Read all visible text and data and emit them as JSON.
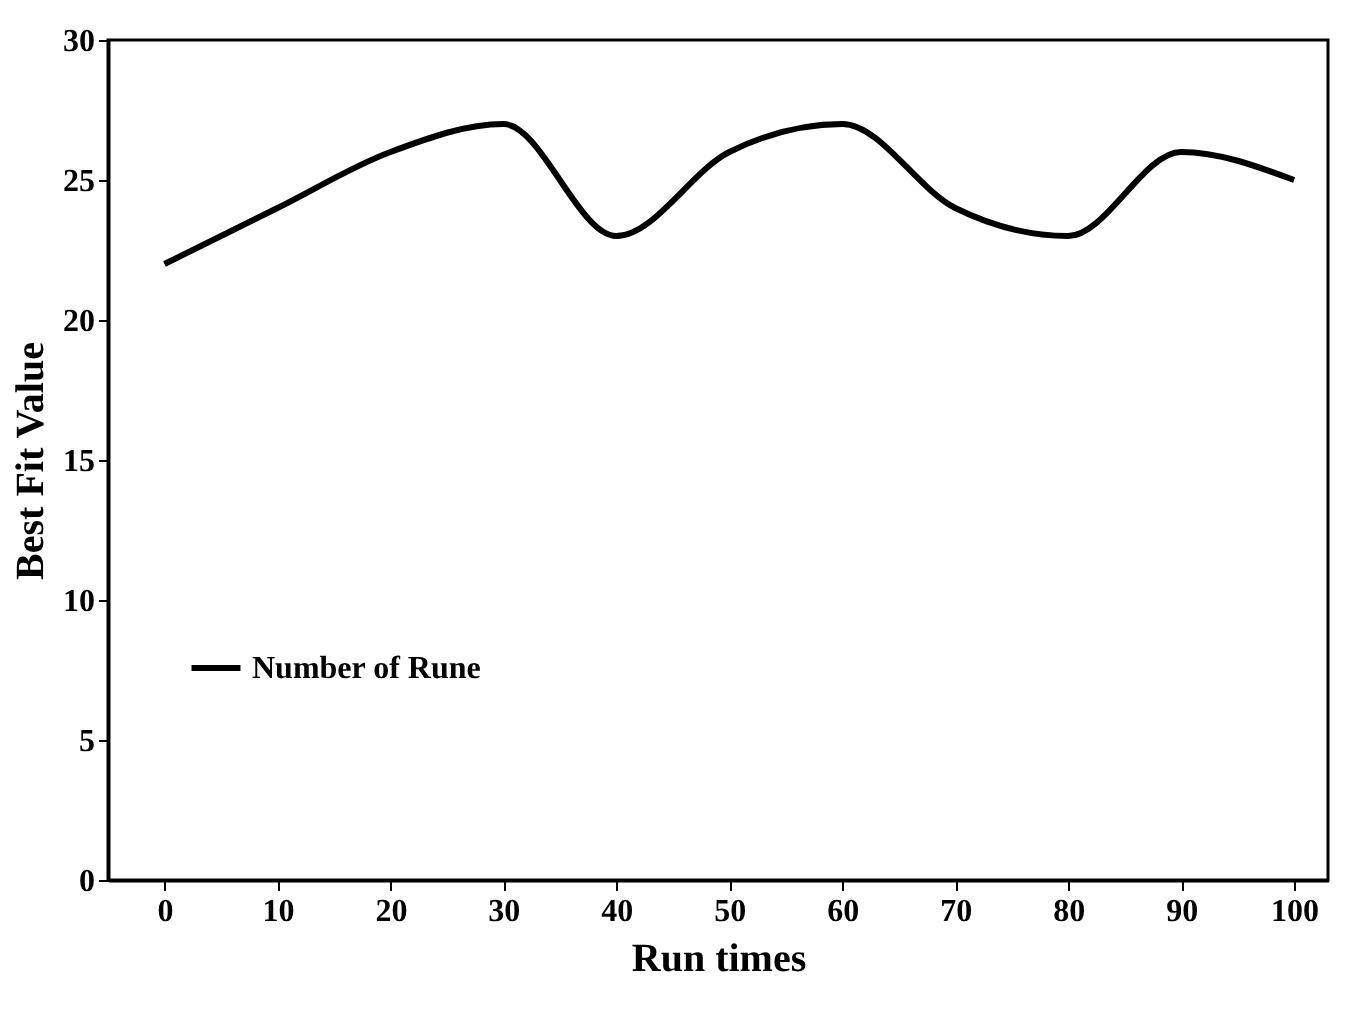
{
  "chart_data": {
    "type": "line",
    "xlabel": "Run times",
    "ylabel": "Best Fit Value",
    "x": [
      0,
      10,
      20,
      30,
      40,
      50,
      60,
      70,
      80,
      90,
      100
    ],
    "series": [
      {
        "name": "Number of Rune",
        "color": "#000000",
        "values": [
          22,
          24,
          26,
          27,
          23,
          26,
          27,
          24,
          23,
          26,
          25
        ]
      }
    ],
    "xlim": [
      -5,
      103
    ],
    "xticks": [
      0,
      10,
      20,
      30,
      40,
      50,
      60,
      70,
      80,
      90,
      100
    ],
    "ylim": [
      0,
      30
    ],
    "yticks": [
      0,
      5,
      10,
      15,
      20,
      25,
      30
    ],
    "grid": false,
    "legend": "left",
    "marker": "none",
    "line_style": "solid"
  }
}
